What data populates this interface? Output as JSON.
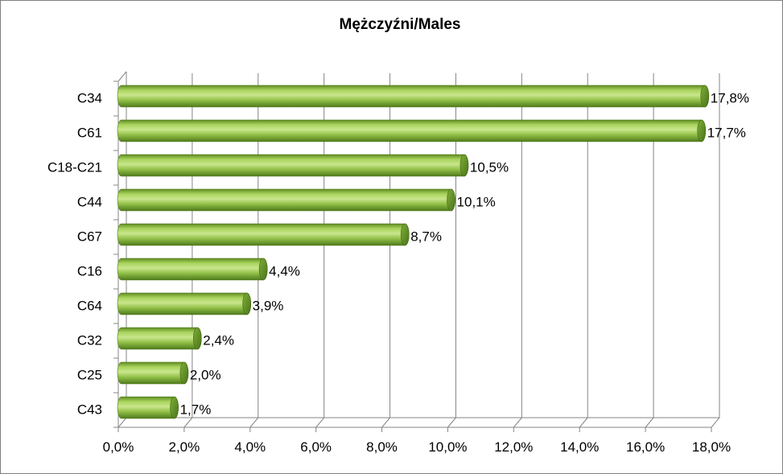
{
  "chart_data": {
    "type": "bar",
    "orientation": "horizontal",
    "title": "Mężczyźni/Males",
    "categories": [
      "C34",
      "C61",
      "C18-C21",
      "C44",
      "C67",
      "C16",
      "C64",
      "C32",
      "C25",
      "C43"
    ],
    "values": [
      17.8,
      17.7,
      10.5,
      10.1,
      8.7,
      4.4,
      3.9,
      2.4,
      2.0,
      1.7
    ],
    "data_labels": [
      "17,8%",
      "17,7%",
      "10,5%",
      "10,1%",
      "8,7%",
      "4,4%",
      "3,9%",
      "2,4%",
      "2,0%",
      "1,7%"
    ],
    "x_ticks": [
      "0,0%",
      "2,0%",
      "4,0%",
      "6,0%",
      "8,0%",
      "10,0%",
      "12,0%",
      "14,0%",
      "16,0%",
      "18,0%"
    ],
    "xlim": [
      0,
      18
    ],
    "grid": true,
    "legend": "none",
    "bar_style": "3d-cylinder",
    "bar_color": "#92c047"
  }
}
